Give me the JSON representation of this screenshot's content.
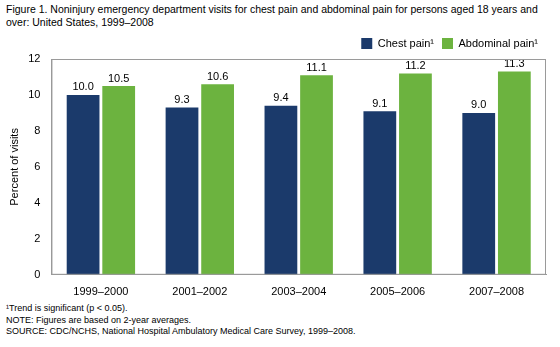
{
  "chart_data": {
    "type": "bar",
    "title": "Figure 1. Noninjury emergency department visits for chest pain and abdominal pain for persons aged 18 years and over: United States, 1999–2008",
    "y_label": "Percent of visits",
    "categories": [
      "1999–2000",
      "2001–2002",
      "2003–2004",
      "2005–2006",
      "2007–2008"
    ],
    "series": [
      {
        "name": "Chest pain¹",
        "color": "#1b3a6b",
        "values": [
          10,
          9.3,
          9.4,
          9.1,
          9
        ],
        "value_labels": [
          "10.0",
          "9.3",
          "9.4",
          "9.1",
          "9.0"
        ]
      },
      {
        "name": "Abdominal pain¹",
        "color": "#6cb33f",
        "values": [
          10.5,
          10.6,
          11.1,
          11.2,
          11.3
        ],
        "value_labels": [
          "10.5",
          "10.6",
          "11.1",
          "11.2",
          "11.3"
        ]
      }
    ],
    "ylim": [
      0,
      12
    ],
    "yticks": [
      0,
      2,
      4,
      6,
      8,
      10,
      12
    ],
    "grid": false,
    "legend": "top-right",
    "data_labels": true,
    "notes": [
      "¹Trend is significant (p < 0.05).",
      "NOTE: Figures are based on 2-year averages.",
      "SOURCE: CDC/NCHS, National Hospital Ambulatory Medical Care Survey, 1999–2008."
    ]
  }
}
